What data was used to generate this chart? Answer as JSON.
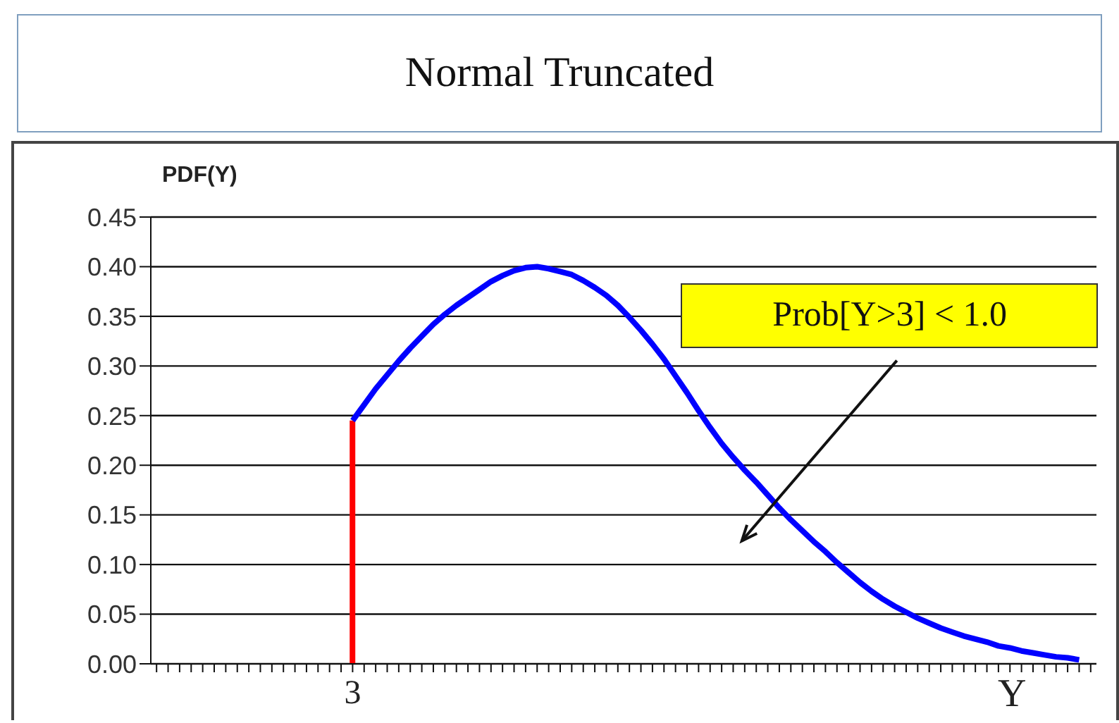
{
  "chart_data": {
    "type": "line",
    "title": "Normal Truncated",
    "ylabel": "PDF(Y)",
    "xlabel": "Y",
    "categories": [
      null,
      null,
      null,
      null,
      null,
      null,
      null,
      null,
      null,
      null,
      null,
      null,
      null,
      null,
      null,
      null,
      null,
      "3",
      null,
      null,
      null,
      null,
      null,
      null,
      null,
      null,
      null,
      null,
      null,
      null,
      null,
      null,
      null,
      null,
      null,
      null,
      null,
      null,
      null,
      null,
      null,
      null,
      null,
      null,
      null,
      null,
      null,
      null,
      null,
      null,
      null,
      null,
      null,
      null,
      null,
      null,
      null,
      null,
      null,
      null,
      null,
      null,
      null,
      null,
      null,
      null,
      null,
      null,
      null,
      null,
      null,
      null,
      null,
      null,
      null,
      null,
      null,
      null,
      null,
      null,
      null,
      null
    ],
    "ylim": [
      0,
      0.45
    ],
    "yticks": [
      {
        "value": 0,
        "label": "0.00"
      },
      {
        "value": 0.05,
        "label": "0.05"
      },
      {
        "value": 0.1,
        "label": "0.10"
      },
      {
        "value": 0.15,
        "label": "0.15"
      },
      {
        "value": 0.2,
        "label": "0.20"
      },
      {
        "value": 0.25,
        "label": "0.25"
      },
      {
        "value": 0.3,
        "label": "0.30"
      },
      {
        "value": 0.35,
        "label": "0.35"
      },
      {
        "value": 0.4,
        "label": "0.40"
      },
      {
        "value": 0.45,
        "label": "0.45"
      }
    ],
    "grid": "y",
    "marker": "none",
    "line_style": "solid",
    "series": [
      {
        "color": "#0000ff",
        "values": [
          null,
          null,
          null,
          null,
          null,
          null,
          null,
          null,
          null,
          null,
          null,
          null,
          null,
          null,
          null,
          null,
          null,
          0.245,
          0.261,
          0.277,
          0.291,
          0.305,
          0.318,
          0.33,
          0.342,
          0.352,
          0.361,
          0.369,
          0.377,
          0.385,
          0.391,
          0.396,
          0.399,
          0.4,
          0.398,
          0.395,
          0.392,
          0.386,
          0.379,
          0.371,
          0.361,
          0.349,
          0.336,
          0.322,
          0.307,
          0.29,
          0.273,
          0.255,
          0.238,
          0.222,
          0.208,
          0.195,
          0.183,
          0.17,
          0.157,
          0.145,
          0.134,
          0.123,
          0.113,
          0.102,
          0.092,
          0.082,
          0.073,
          0.065,
          0.058,
          0.052,
          0.046,
          0.041,
          0.036,
          0.032,
          0.028,
          0.025,
          0.022,
          0.018,
          0.016,
          0.013,
          0.011,
          0.009,
          0.007,
          0.006,
          0.004,
          null
        ]
      },
      {
        "type": "bar",
        "color": "#ff0000",
        "values": [
          null,
          null,
          null,
          null,
          null,
          null,
          null,
          null,
          null,
          null,
          null,
          null,
          null,
          null,
          null,
          null,
          null,
          0.245,
          null,
          null,
          null,
          null,
          null,
          null,
          null,
          null,
          null,
          null,
          null,
          null,
          null,
          null,
          null,
          null,
          null,
          null,
          null,
          null,
          null,
          null,
          null,
          null,
          null,
          null,
          null,
          null,
          null,
          null,
          null,
          null,
          null,
          null,
          null,
          null,
          null,
          null,
          null,
          null,
          null,
          null,
          null,
          null,
          null,
          null,
          null,
          null,
          null,
          null,
          null,
          null,
          null,
          null,
          null,
          null,
          null,
          null,
          null,
          null,
          null,
          null,
          null,
          null
        ]
      }
    ],
    "annotations": [
      "Prob[Y>3] < 1.0"
    ]
  }
}
